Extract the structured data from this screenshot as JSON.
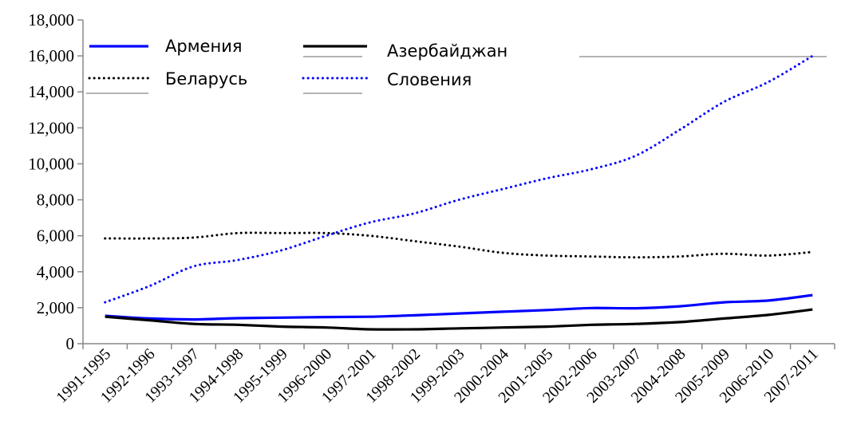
{
  "chart_data": {
    "type": "line",
    "title": "",
    "xlabel": "",
    "ylabel": "",
    "ylim": [
      0,
      18000
    ],
    "yticks": [
      "0",
      "2,000",
      "4,000",
      "6,000",
      "8,000",
      "10,000",
      "12,000",
      "14,000",
      "16,000",
      "18,000"
    ],
    "grid": false,
    "legend_position": "top-left",
    "categories": [
      "1991-1995",
      "1992-1996",
      "1993-1997",
      "1994-1998",
      "1995-1999",
      "1996-2000",
      "1997-2001",
      "1998-2002",
      "1999-2003",
      "2000-2004",
      "2001-2005",
      "2002-2006",
      "2003-2007",
      "2004-2008",
      "2005-2009",
      "2006-2010",
      "2007-2011"
    ],
    "series": [
      {
        "name": "Армения",
        "color": "#0000ff",
        "style": "solid",
        "values": [
          1550,
          1400,
          1350,
          1420,
          1450,
          1480,
          1500,
          1580,
          1680,
          1780,
          1870,
          1980,
          1970,
          2080,
          2300,
          2400,
          2700
        ]
      },
      {
        "name": "Азербайджан",
        "color": "#000000",
        "style": "solid",
        "values": [
          1500,
          1300,
          1100,
          1050,
          950,
          900,
          800,
          800,
          850,
          900,
          950,
          1050,
          1100,
          1200,
          1400,
          1600,
          1900
        ]
      },
      {
        "name": "Беларусь",
        "color": "#000000",
        "style": "dotted",
        "values": [
          5850,
          5850,
          5900,
          6150,
          6150,
          6150,
          6000,
          5700,
          5400,
          5050,
          4900,
          4850,
          4800,
          4850,
          5000,
          4900,
          5100
        ]
      },
      {
        "name": "Словения",
        "color": "#0000ff",
        "style": "dotted",
        "values": [
          2300,
          3200,
          4300,
          4650,
          5200,
          6000,
          6750,
          7250,
          8000,
          8600,
          9200,
          9700,
          10450,
          11900,
          13450,
          14550,
          16000
        ]
      }
    ]
  }
}
